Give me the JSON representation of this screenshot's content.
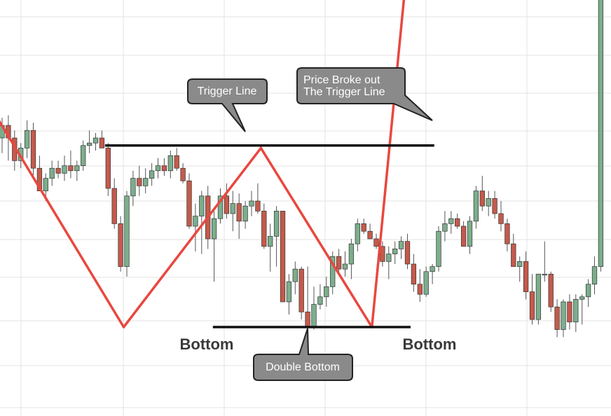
{
  "chart_data": {
    "type": "candlestick",
    "title": "",
    "grid": true,
    "colors": {
      "up_candle": "#7cae8c",
      "down_candle": "#c45a4b",
      "wick": "#555555",
      "pattern_line": "#e8483f",
      "level_line": "#111111",
      "callout_fill": "#8a8a8a",
      "callout_border": "#222222",
      "grid": "#e3e3e3"
    },
    "candles": [
      {
        "o": 49,
        "h": 57,
        "l": 43,
        "c": 54
      },
      {
        "o": 54,
        "h": 58,
        "l": 40,
        "c": 49
      },
      {
        "o": 49,
        "h": 52,
        "l": 36,
        "c": 40
      },
      {
        "o": 40,
        "h": 47,
        "l": 37,
        "c": 45
      },
      {
        "o": 45,
        "h": 56,
        "l": 41,
        "c": 52
      },
      {
        "o": 52,
        "h": 55,
        "l": 34,
        "c": 37
      },
      {
        "o": 37,
        "h": 42,
        "l": 28,
        "c": 28
      },
      {
        "o": 28,
        "h": 35,
        "l": 24,
        "c": 33
      },
      {
        "o": 33,
        "h": 40,
        "l": 30,
        "c": 37
      },
      {
        "o": 37,
        "h": 40,
        "l": 33,
        "c": 35
      },
      {
        "o": 35,
        "h": 42,
        "l": 32,
        "c": 38
      },
      {
        "o": 38,
        "h": 44,
        "l": 33,
        "c": 36
      },
      {
        "o": 36,
        "h": 40,
        "l": 32,
        "c": 38
      },
      {
        "o": 38,
        "h": 48,
        "l": 36,
        "c": 46
      },
      {
        "o": 46,
        "h": 52,
        "l": 43,
        "c": 47
      },
      {
        "o": 47,
        "h": 51,
        "l": 44,
        "c": 49
      },
      {
        "o": 49,
        "h": 52,
        "l": 45,
        "c": 45
      },
      {
        "o": 45,
        "h": 47,
        "l": 26,
        "c": 29
      },
      {
        "o": 29,
        "h": 33,
        "l": 13,
        "c": 15
      },
      {
        "o": 15,
        "h": 18,
        "l": -4,
        "c": -2
      },
      {
        "o": -2,
        "h": 28,
        "l": -6,
        "c": 26
      },
      {
        "o": 26,
        "h": 36,
        "l": 22,
        "c": 33
      },
      {
        "o": 33,
        "h": 38,
        "l": 26,
        "c": 30
      },
      {
        "o": 30,
        "h": 37,
        "l": 27,
        "c": 33
      },
      {
        "o": 33,
        "h": 39,
        "l": 30,
        "c": 36
      },
      {
        "o": 36,
        "h": 41,
        "l": 33,
        "c": 38
      },
      {
        "o": 38,
        "h": 41,
        "l": 34,
        "c": 36
      },
      {
        "o": 36,
        "h": 44,
        "l": 33,
        "c": 42
      },
      {
        "o": 42,
        "h": 45,
        "l": 36,
        "c": 37
      },
      {
        "o": 37,
        "h": 39,
        "l": 31,
        "c": 32
      },
      {
        "o": 32,
        "h": 35,
        "l": 13,
        "c": 14
      },
      {
        "o": 14,
        "h": 23,
        "l": 4,
        "c": 18
      },
      {
        "o": 18,
        "h": 28,
        "l": 3,
        "c": 26
      },
      {
        "o": 26,
        "h": 30,
        "l": 5,
        "c": 9
      },
      {
        "o": 9,
        "h": 20,
        "l": -8,
        "c": 17
      },
      {
        "o": 17,
        "h": 29,
        "l": 15,
        "c": 26
      },
      {
        "o": 26,
        "h": 31,
        "l": 17,
        "c": 19
      },
      {
        "o": 19,
        "h": 28,
        "l": 12,
        "c": 23
      },
      {
        "o": 23,
        "h": 27,
        "l": 9,
        "c": 16
      },
      {
        "o": 16,
        "h": 24,
        "l": 13,
        "c": 22
      },
      {
        "o": 22,
        "h": 28,
        "l": 18,
        "c": 24
      },
      {
        "o": 24,
        "h": 31,
        "l": 19,
        "c": 20
      },
      {
        "o": 20,
        "h": 23,
        "l": 5,
        "c": 6
      },
      {
        "o": 6,
        "h": 15,
        "l": -4,
        "c": 10
      },
      {
        "o": 10,
        "h": 22,
        "l": -2,
        "c": 20
      },
      {
        "o": 20,
        "h": 20,
        "l": -16,
        "c": -16
      },
      {
        "o": -16,
        "h": -5,
        "l": -21,
        "c": -8
      },
      {
        "o": -8,
        "h": 0,
        "l": -13,
        "c": -3
      },
      {
        "o": -3,
        "h": -2,
        "l": -23,
        "c": -20
      },
      {
        "o": -20,
        "h": -2,
        "l": -26,
        "c": -26
      },
      {
        "o": -26,
        "h": -10,
        "l": -27,
        "c": -17
      },
      {
        "o": -17,
        "h": -9,
        "l": -19,
        "c": -14
      },
      {
        "o": -14,
        "h": -6,
        "l": -18,
        "c": -10
      },
      {
        "o": -10,
        "h": 4,
        "l": -13,
        "c": 2
      },
      {
        "o": 2,
        "h": 5,
        "l": -4,
        "c": -3
      },
      {
        "o": -3,
        "h": 4,
        "l": -6,
        "c": -1
      },
      {
        "o": -1,
        "h": 9,
        "l": -7,
        "c": 7
      },
      {
        "o": 7,
        "h": 17,
        "l": 4,
        "c": 15
      },
      {
        "o": 15,
        "h": 17,
        "l": 11,
        "c": 12
      },
      {
        "o": 12,
        "h": 15,
        "l": 9,
        "c": 9
      },
      {
        "o": 9,
        "h": 11,
        "l": 5,
        "c": 6
      },
      {
        "o": 6,
        "h": 8,
        "l": -2,
        "c": 0
      },
      {
        "o": 0,
        "h": 6,
        "l": -7,
        "c": 3
      },
      {
        "o": 3,
        "h": 8,
        "l": -1,
        "c": 5
      },
      {
        "o": 5,
        "h": 10,
        "l": 1,
        "c": 8
      },
      {
        "o": 8,
        "h": 11,
        "l": -3,
        "c": -1
      },
      {
        "o": -1,
        "h": 3,
        "l": -12,
        "c": -9
      },
      {
        "o": -9,
        "h": -3,
        "l": -16,
        "c": -13
      },
      {
        "o": -13,
        "h": -2,
        "l": -14,
        "c": -4
      },
      {
        "o": -4,
        "h": -1,
        "l": -9,
        "c": -2
      },
      {
        "o": -2,
        "h": 14,
        "l": -4,
        "c": 12
      },
      {
        "o": 12,
        "h": 20,
        "l": 8,
        "c": 15
      },
      {
        "o": 15,
        "h": 20,
        "l": 11,
        "c": 17
      },
      {
        "o": 17,
        "h": 19,
        "l": 13,
        "c": 14
      },
      {
        "o": 14,
        "h": 16,
        "l": 6,
        "c": 6
      },
      {
        "o": 6,
        "h": 18,
        "l": 3,
        "c": 16
      },
      {
        "o": 16,
        "h": 30,
        "l": 13,
        "c": 28
      },
      {
        "o": 28,
        "h": 34,
        "l": 20,
        "c": 22
      },
      {
        "o": 22,
        "h": 28,
        "l": 18,
        "c": 25
      },
      {
        "o": 25,
        "h": 28,
        "l": 17,
        "c": 19
      },
      {
        "o": 19,
        "h": 24,
        "l": 12,
        "c": 15
      },
      {
        "o": 15,
        "h": 17,
        "l": 4,
        "c": 7
      },
      {
        "o": 7,
        "h": 11,
        "l": -2,
        "c": -2
      },
      {
        "o": -2,
        "h": 2,
        "l": -8,
        "c": 0
      },
      {
        "o": 0,
        "h": 4,
        "l": -15,
        "c": -12
      },
      {
        "o": -12,
        "h": -5,
        "l": -25,
        "c": -23
      },
      {
        "o": -23,
        "h": -5,
        "l": -25,
        "c": -5
      },
      {
        "o": -5,
        "h": 8,
        "l": -8,
        "c": -5
      },
      {
        "o": -5,
        "h": -4,
        "l": -20,
        "c": -18
      },
      {
        "o": -18,
        "h": -15,
        "l": -30,
        "c": -27
      },
      {
        "o": -27,
        "h": -15,
        "l": -30,
        "c": -16
      },
      {
        "o": -16,
        "h": -13,
        "l": -27,
        "c": -24
      },
      {
        "o": -24,
        "h": -13,
        "l": -28,
        "c": -15
      },
      {
        "o": -15,
        "h": -13,
        "l": -25,
        "c": -14
      },
      {
        "o": -14,
        "h": -7,
        "l": -18,
        "c": -9
      },
      {
        "o": -9,
        "h": 2,
        "l": -13,
        "c": -2
      },
      {
        "o": -2,
        "h": 131,
        "l": -4,
        "c": 125
      }
    ],
    "pattern_lines": [
      {
        "name": "downtrend",
        "points": [
          [
            -2,
            62
          ],
          [
            19.5,
            -26
          ]
        ]
      },
      {
        "name": "rally",
        "points": [
          [
            19.5,
            -26
          ],
          [
            41.5,
            45
          ]
        ]
      },
      {
        "name": "decline",
        "points": [
          [
            41.5,
            45
          ],
          [
            59.3,
            -26
          ]
        ]
      },
      {
        "name": "breakout",
        "points": [
          [
            59.3,
            -26
          ],
          [
            65.5,
            131
          ]
        ]
      }
    ],
    "trigger_level": 46,
    "bottom_level": -26,
    "annotations": {
      "trigger_callout": "Trigger Line",
      "breakout_callout_line1": "Price Broke out",
      "breakout_callout_line2": "The Trigger Line",
      "bottom_left": "Bottom",
      "bottom_right": "Bottom",
      "double_bottom_callout": "Double Bottom"
    }
  }
}
